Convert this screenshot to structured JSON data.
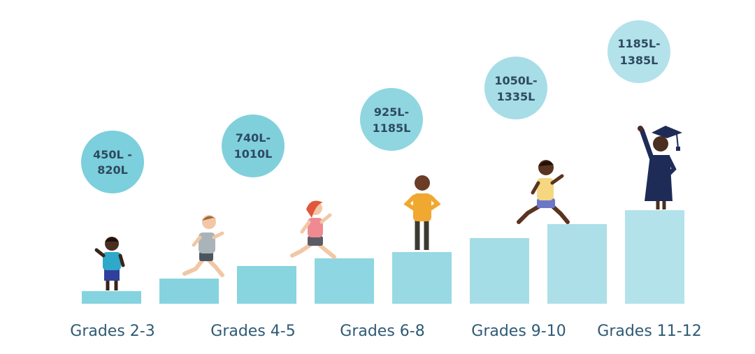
{
  "steps": [
    {
      "grade": "Grades 2-3",
      "lexile": [
        "450L -",
        "820L"
      ],
      "color": "#84d3de",
      "bubble_color": "#7ccfdc"
    },
    {
      "grade": "Grades 4-5",
      "lexile": [
        "740L-",
        "1010L"
      ],
      "color": "#86d3df",
      "bubble_color": "#80d0dc"
    },
    {
      "grade": "Grades 6-8",
      "lexile": [
        "925L-",
        "1185L"
      ],
      "color": "#8ed6e1",
      "bubble_color": "#8fd6e1"
    },
    {
      "grade": "Grades 9-10",
      "lexile": [
        "1050L-",
        "1335L"
      ],
      "color": "#a5dde6",
      "bubble_color": "#a6dde6"
    },
    {
      "grade": "Grades 11-12",
      "lexile": [
        "1185L-",
        "1385L"
      ],
      "color": "#b3e2ea",
      "bubble_color": "#b3e2ea"
    }
  ],
  "colors": {
    "text": "#2f5a75",
    "bubble_text": "#2e4a60",
    "skin_dark": "#4a2e1f",
    "skin_light": "#f2c7a5",
    "gown": "#1f2b57"
  }
}
